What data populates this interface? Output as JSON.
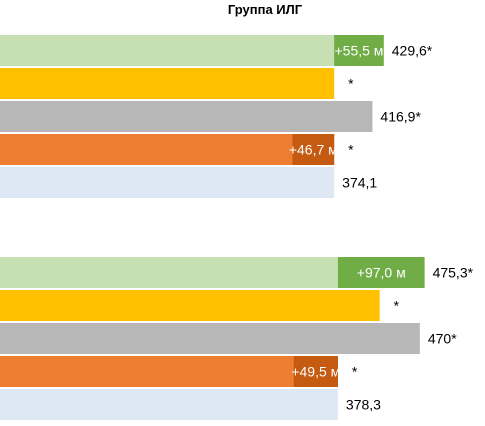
{
  "title": "Группа ИЛГ",
  "chart_data": {
    "type": "bar",
    "orientation": "horizontal",
    "title": "Группа ИЛГ",
    "xlim": [
      0,
      480
    ],
    "grid": false,
    "groups": [
      {
        "bars": [
          {
            "value": 429.6,
            "label": "429,6*",
            "color": "#c6e0b4",
            "highlight": {
              "value": 55.5,
              "label": "+55,5 м",
              "color": "#70ad47"
            }
          },
          {
            "value": 374.1,
            "label": "*",
            "color": "#ffc000"
          },
          {
            "value": 416.9,
            "label": "416,9*",
            "color": "#b7b7b7"
          },
          {
            "value": 374.1,
            "label": "*",
            "color": "#ed7d31",
            "highlight": {
              "value": 46.7,
              "label": "+46,7 м",
              "color": "#c55a11"
            }
          },
          {
            "value": 374.1,
            "label": "374,1",
            "color": "#dde8f4"
          }
        ]
      },
      {
        "bars": [
          {
            "value": 475.3,
            "label": "475,3*",
            "color": "#c6e0b4",
            "highlight": {
              "value": 97.0,
              "label": "+97,0 м",
              "color": "#70ad47"
            }
          },
          {
            "value": 425.0,
            "label": "*",
            "color": "#ffc000"
          },
          {
            "value": 470.0,
            "label": "470*",
            "color": "#b7b7b7"
          },
          {
            "value": 378.3,
            "label": "*",
            "color": "#ed7d31",
            "highlight": {
              "value": 49.5,
              "label": "+49,5 м",
              "color": "#c55a11"
            }
          },
          {
            "value": 378.3,
            "label": "378,3",
            "color": "#dde8f4"
          }
        ]
      }
    ]
  }
}
